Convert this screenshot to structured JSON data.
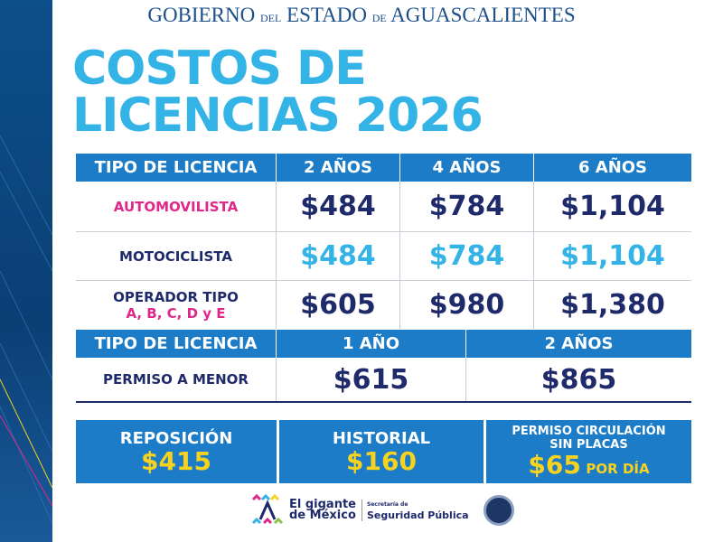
{
  "header": {
    "gov_main1": "GOBIERNO",
    "gov_small1": "DEL",
    "gov_main2": "ESTADO",
    "gov_small2": "DE",
    "gov_main3": "AGUASCALIENTES"
  },
  "title": {
    "line1": "COSTOS DE",
    "line2": "LICENCIAS 2026"
  },
  "table1": {
    "headers": [
      "TIPO DE LICENCIA",
      "2 AÑOS",
      "4 AÑOS",
      "6 AÑOS"
    ],
    "rows": [
      {
        "label": "AUTOMOVILISTA",
        "values": [
          "$484",
          "$784",
          "$1,104"
        ]
      },
      {
        "label": "MOTOCICLISTA",
        "values": [
          "$484",
          "$784",
          "$1,104"
        ]
      },
      {
        "label": "OPERADOR TIPO",
        "sublabel": "A, B, C, D y E",
        "values": [
          "$605",
          "$980",
          "$1,380"
        ]
      }
    ]
  },
  "table2": {
    "headers": [
      "TIPO DE LICENCIA",
      "1 AÑO",
      "2 AÑOS"
    ],
    "rows": [
      {
        "label": "PERMISO A MENOR",
        "values": [
          "$615",
          "$865"
        ]
      }
    ]
  },
  "boxes": [
    {
      "title": "REPOSICIÓN",
      "price": "$415"
    },
    {
      "title": "HISTORIAL",
      "price": "$160"
    },
    {
      "title": "PERMISO CIRCULACIÓN",
      "title2": "SIN PLACAS",
      "price": "$65",
      "suffix": "POR DÍA"
    }
  ],
  "footer": {
    "gigante1": "El gigante",
    "gigante2": "de México",
    "ssp_small": "Secretaría de",
    "ssp": "Seguridad Pública"
  },
  "colors": {
    "header_blue": "#1c7cc7",
    "title_cyan": "#34b3e6",
    "navy": "#1f2a6b",
    "pink": "#e0288a",
    "yellow": "#f7d21e"
  }
}
